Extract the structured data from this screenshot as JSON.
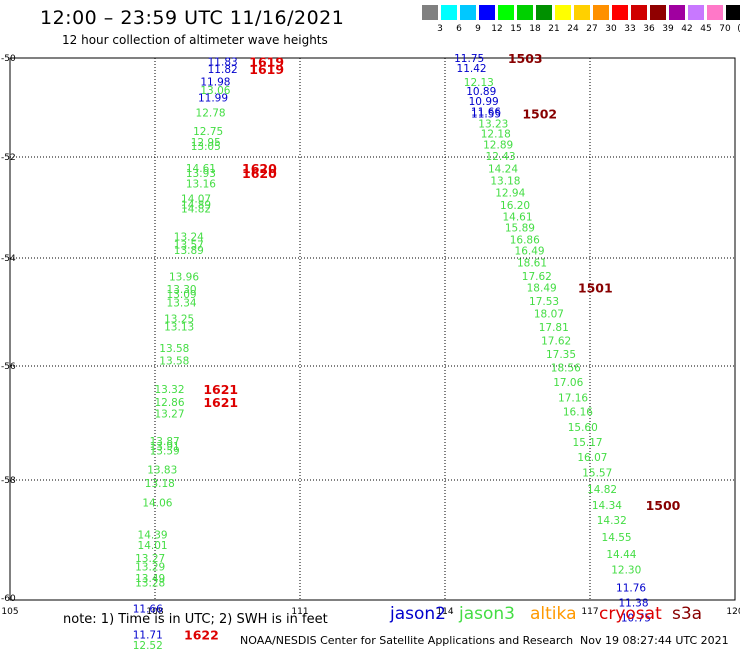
{
  "title": "12:00  –  23:59  UTC  11/16/2021",
  "subtitle": "12 hour collection of altimeter wave heights",
  "color_scale": {
    "colors": [
      "#808080",
      "#00ffff",
      "#00c8ff",
      "#0000ff",
      "#00ff00",
      "#00d000",
      "#009000",
      "#ffff00",
      "#ffd000",
      "#ff9000",
      "#ff0000",
      "#d00000",
      "#900000",
      "#a000a0",
      "#c878ff",
      "#ff78c8",
      "#000000"
    ],
    "labels": [
      "3",
      "6",
      "9",
      "12",
      "15",
      "18",
      "21",
      "24",
      "27",
      "30",
      "33",
      "36",
      "39",
      "42",
      "45",
      "70",
      "(ft)"
    ]
  },
  "axes": {
    "lon_ticks": [
      "105",
      "108",
      "111",
      "114",
      "117",
      "120"
    ],
    "lat_ticks": [
      "-50",
      "-52",
      "-54",
      "-56",
      "-58",
      "-60"
    ]
  },
  "satellite_colors": {
    "jason2": "#0000cc",
    "jason3": "#44dd44",
    "altika": "#ff9900",
    "cryosat": "#dd0000",
    "s3a": "#880000"
  },
  "tracks": [
    {
      "id": "track-west",
      "points": [
        {
          "lon": 109.4,
          "lat": -50.07,
          "v": "11.83",
          "sat": "jason2"
        },
        {
          "lon": 109.4,
          "lat": -50.22,
          "v": "11.82",
          "sat": "jason2"
        },
        {
          "lon": 109.25,
          "lat": -50.47,
          "v": "11.98",
          "sat": "jason2"
        },
        {
          "lon": 109.25,
          "lat": -50.65,
          "v": "13.06",
          "sat": "jason3"
        },
        {
          "lon": 109.2,
          "lat": -50.8,
          "v": "11.99",
          "sat": "jason2"
        },
        {
          "lon": 109.15,
          "lat": -51.1,
          "v": "12.78",
          "sat": "jason3"
        },
        {
          "lon": 109.1,
          "lat": -51.47,
          "v": "12.75",
          "sat": "jason3"
        },
        {
          "lon": 109.05,
          "lat": -51.7,
          "v": "12.95",
          "sat": "jason3"
        },
        {
          "lon": 109.05,
          "lat": -51.78,
          "v": "13.05",
          "sat": "jason3"
        },
        {
          "lon": 108.95,
          "lat": -52.22,
          "v": "14.61",
          "sat": "jason3"
        },
        {
          "lon": 108.95,
          "lat": -52.32,
          "v": "13.93",
          "sat": "jason3"
        },
        {
          "lon": 108.95,
          "lat": -52.52,
          "v": "13.16",
          "sat": "jason3"
        },
        {
          "lon": 108.85,
          "lat": -52.82,
          "v": "14.07",
          "sat": "jason3"
        },
        {
          "lon": 108.85,
          "lat": -52.94,
          "v": "14.89",
          "sat": "jason3"
        },
        {
          "lon": 108.85,
          "lat": -53.02,
          "v": "14.82",
          "sat": "jason3"
        },
        {
          "lon": 108.7,
          "lat": -53.57,
          "v": "13.24",
          "sat": "jason3"
        },
        {
          "lon": 108.7,
          "lat": -53.73,
          "v": "13.57",
          "sat": "jason3"
        },
        {
          "lon": 108.7,
          "lat": -53.84,
          "v": "13.89",
          "sat": "jason3"
        },
        {
          "lon": 108.6,
          "lat": -54.34,
          "v": "13.96",
          "sat": "jason3"
        },
        {
          "lon": 108.55,
          "lat": -54.57,
          "v": "13.30",
          "sat": "jason3"
        },
        {
          "lon": 108.55,
          "lat": -54.67,
          "v": "13.09",
          "sat": "jason3"
        },
        {
          "lon": 108.55,
          "lat": -54.82,
          "v": "13.34",
          "sat": "jason3"
        },
        {
          "lon": 108.5,
          "lat": -55.12,
          "v": "13.25",
          "sat": "jason3"
        },
        {
          "lon": 108.5,
          "lat": -55.27,
          "v": "13.13",
          "sat": "jason3"
        },
        {
          "lon": 108.4,
          "lat": -55.67,
          "v": "13.58",
          "sat": "jason3"
        },
        {
          "lon": 108.4,
          "lat": -55.9,
          "v": "13.58",
          "sat": "jason3"
        },
        {
          "lon": 108.3,
          "lat": -56.4,
          "v": "13.32",
          "sat": "jason3"
        },
        {
          "lon": 108.3,
          "lat": -56.63,
          "v": "12.86",
          "sat": "jason3"
        },
        {
          "lon": 108.3,
          "lat": -56.83,
          "v": "13.27",
          "sat": "jason3"
        },
        {
          "lon": 108.2,
          "lat": -57.32,
          "v": "13.87",
          "sat": "jason3"
        },
        {
          "lon": 108.2,
          "lat": -57.4,
          "v": "13.91",
          "sat": "jason3"
        },
        {
          "lon": 108.2,
          "lat": -57.48,
          "v": "13.59",
          "sat": "jason3"
        },
        {
          "lon": 108.15,
          "lat": -57.82,
          "v": "13.83",
          "sat": "jason3"
        },
        {
          "lon": 108.1,
          "lat": -58.05,
          "v": "13.18",
          "sat": "jason3"
        },
        {
          "lon": 108.05,
          "lat": -58.38,
          "v": "14.06",
          "sat": "jason3"
        },
        {
          "lon": 107.95,
          "lat": -58.92,
          "v": "14.39",
          "sat": "jason3"
        },
        {
          "lon": 107.95,
          "lat": -59.1,
          "v": "14.01",
          "sat": "jason3"
        },
        {
          "lon": 107.9,
          "lat": -59.32,
          "v": "13.27",
          "sat": "jason3"
        },
        {
          "lon": 107.9,
          "lat": -59.47,
          "v": "13.29",
          "sat": "jason3"
        },
        {
          "lon": 107.9,
          "lat": -59.66,
          "v": "13.49",
          "sat": "jason3"
        },
        {
          "lon": 107.9,
          "lat": -59.74,
          "v": "13.28",
          "sat": "jason3"
        },
        {
          "lon": 107.85,
          "lat": -60.18,
          "v": "11.66",
          "sat": "jason2"
        },
        {
          "lon": 107.85,
          "lat": -60.62,
          "v": "11.71",
          "sat": "jason2"
        },
        {
          "lon": 107.85,
          "lat": -60.8,
          "v": "12.52",
          "sat": "jason3"
        }
      ]
    },
    {
      "id": "track-east",
      "points": [
        {
          "lon": 114.5,
          "lat": -50.0,
          "v": "11.75",
          "sat": "jason2"
        },
        {
          "lon": 114.55,
          "lat": -50.2,
          "v": "11.42",
          "sat": "jason2"
        },
        {
          "lon": 114.7,
          "lat": -50.48,
          "v": "12.13",
          "sat": "jason3"
        },
        {
          "lon": 114.75,
          "lat": -50.67,
          "v": "10.89",
          "sat": "jason2"
        },
        {
          "lon": 114.8,
          "lat": -50.87,
          "v": "10.99",
          "sat": "jason2"
        },
        {
          "lon": 114.85,
          "lat": -51.08,
          "v": "11.66",
          "sat": "jason2"
        },
        {
          "lon": 114.85,
          "lat": -51.12,
          "v": "11.55",
          "sat": "jason2"
        },
        {
          "lon": 115.0,
          "lat": -51.32,
          "v": "13.23",
          "sat": "jason3"
        },
        {
          "lon": 115.05,
          "lat": -51.53,
          "v": "12.18",
          "sat": "jason3"
        },
        {
          "lon": 115.1,
          "lat": -51.75,
          "v": "12.89",
          "sat": "jason3"
        },
        {
          "lon": 115.15,
          "lat": -51.98,
          "v": "12.43",
          "sat": "jason3"
        },
        {
          "lon": 115.2,
          "lat": -52.23,
          "v": "14.24",
          "sat": "jason3"
        },
        {
          "lon": 115.25,
          "lat": -52.47,
          "v": "13.18",
          "sat": "jason3"
        },
        {
          "lon": 115.35,
          "lat": -52.7,
          "v": "12.94",
          "sat": "jason3"
        },
        {
          "lon": 115.45,
          "lat": -52.95,
          "v": "16.20",
          "sat": "jason3"
        },
        {
          "lon": 115.5,
          "lat": -53.18,
          "v": "14.61",
          "sat": "jason3"
        },
        {
          "lon": 115.55,
          "lat": -53.4,
          "v": "15.89",
          "sat": "jason3"
        },
        {
          "lon": 115.65,
          "lat": -53.63,
          "v": "16.86",
          "sat": "jason3"
        },
        {
          "lon": 115.75,
          "lat": -53.85,
          "v": "16.49",
          "sat": "jason3"
        },
        {
          "lon": 115.8,
          "lat": -54.08,
          "v": "18.61",
          "sat": "jason3"
        },
        {
          "lon": 115.9,
          "lat": -54.33,
          "v": "17.62",
          "sat": "jason3"
        },
        {
          "lon": 116.0,
          "lat": -54.55,
          "v": "18.49",
          "sat": "jason3"
        },
        {
          "lon": 116.05,
          "lat": -54.8,
          "v": "17.53",
          "sat": "jason3"
        },
        {
          "lon": 116.15,
          "lat": -55.03,
          "v": "18.07",
          "sat": "jason3"
        },
        {
          "lon": 116.25,
          "lat": -55.28,
          "v": "17.81",
          "sat": "jason3"
        },
        {
          "lon": 116.3,
          "lat": -55.53,
          "v": "17.62",
          "sat": "jason3"
        },
        {
          "lon": 116.4,
          "lat": -55.78,
          "v": "17.35",
          "sat": "jason3"
        },
        {
          "lon": 116.5,
          "lat": -56.03,
          "v": "18.56",
          "sat": "jason3"
        },
        {
          "lon": 116.55,
          "lat": -56.28,
          "v": "17.06",
          "sat": "jason3"
        },
        {
          "lon": 116.65,
          "lat": -56.55,
          "v": "17.16",
          "sat": "jason3"
        },
        {
          "lon": 116.75,
          "lat": -56.8,
          "v": "16.16",
          "sat": "jason3"
        },
        {
          "lon": 116.85,
          "lat": -57.07,
          "v": "15.60",
          "sat": "jason3"
        },
        {
          "lon": 116.95,
          "lat": -57.33,
          "v": "15.17",
          "sat": "jason3"
        },
        {
          "lon": 117.05,
          "lat": -57.6,
          "v": "16.07",
          "sat": "jason3"
        },
        {
          "lon": 117.15,
          "lat": -57.87,
          "v": "15.57",
          "sat": "jason3"
        },
        {
          "lon": 117.25,
          "lat": -58.15,
          "v": "14.82",
          "sat": "jason3"
        },
        {
          "lon": 117.35,
          "lat": -58.42,
          "v": "14.34",
          "sat": "jason3"
        },
        {
          "lon": 117.45,
          "lat": -58.68,
          "v": "14.32",
          "sat": "jason3"
        },
        {
          "lon": 117.55,
          "lat": -58.97,
          "v": "14.55",
          "sat": "jason3"
        },
        {
          "lon": 117.65,
          "lat": -59.25,
          "v": "14.44",
          "sat": "jason3"
        },
        {
          "lon": 117.75,
          "lat": -59.52,
          "v": "12.30",
          "sat": "jason3"
        },
        {
          "lon": 117.85,
          "lat": -59.82,
          "v": "11.76",
          "sat": "jason2"
        },
        {
          "lon": 117.9,
          "lat": -60.08,
          "v": "11.38",
          "sat": "jason2"
        },
        {
          "lon": 117.95,
          "lat": -60.33,
          "v": "10.75",
          "sat": "jason2"
        }
      ]
    }
  ],
  "time_labels": [
    {
      "lon": 109.95,
      "lat": -50.07,
      "t": "1619",
      "sat": "cryosat"
    },
    {
      "lon": 109.95,
      "lat": -50.22,
      "t": "1619",
      "sat": "cryosat"
    },
    {
      "lon": 109.8,
      "lat": -52.22,
      "t": "1620",
      "sat": "cryosat"
    },
    {
      "lon": 109.8,
      "lat": -52.32,
      "t": "1620",
      "sat": "cryosat"
    },
    {
      "lon": 109.0,
      "lat": -56.4,
      "t": "1621",
      "sat": "cryosat"
    },
    {
      "lon": 109.0,
      "lat": -56.63,
      "t": "1621",
      "sat": "cryosat"
    },
    {
      "lon": 108.6,
      "lat": -60.62,
      "t": "1622",
      "sat": "cryosat"
    },
    {
      "lon": 115.3,
      "lat": -50.0,
      "t": "1503",
      "sat": "s3a"
    },
    {
      "lon": 115.6,
      "lat": -51.12,
      "t": "1502",
      "sat": "s3a"
    },
    {
      "lon": 116.75,
      "lat": -54.55,
      "t": "1501",
      "sat": "s3a"
    },
    {
      "lon": 118.15,
      "lat": -58.42,
      "t": "1500",
      "sat": "s3a"
    }
  ],
  "footer": {
    "note": "note:  1) Time is in UTC;  2) SWH is in feet",
    "legend": [
      "jason2",
      "jason3",
      "altika",
      "cryosat",
      "s3a"
    ],
    "credit": "NOAA/NESDIS Center for Satellite Applications and Research",
    "timestamp": "Nov 19 08:27:44 UTC 2021"
  }
}
